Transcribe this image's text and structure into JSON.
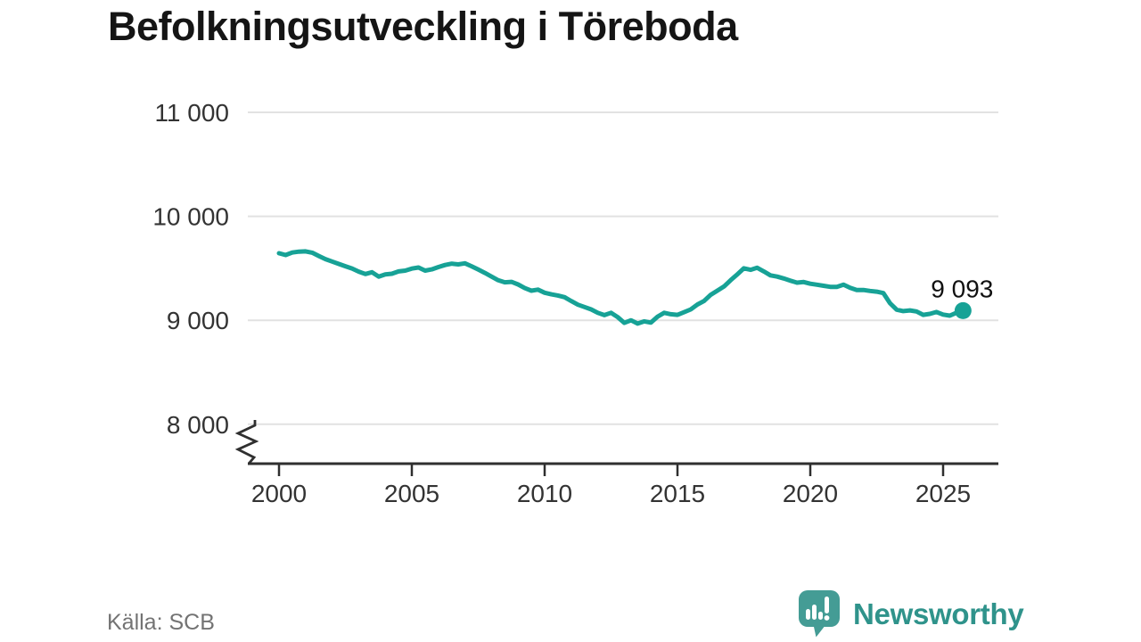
{
  "title": "Befolkningsutveckling i Töreboda",
  "source": "Källa: SCB",
  "branding": {
    "name": "Newsworthy"
  },
  "colors": {
    "line": "#17A296",
    "grid": "#E2E2E2",
    "axis": "#2F2F2F",
    "tick_text": "#333333",
    "annotation_text": "#111111",
    "muted_text": "#737373",
    "brand_icon": "#449C95",
    "brand_text": "#2F938B",
    "background": "#FFFFFF"
  },
  "chart_data": {
    "type": "line",
    "title": "Befolkningsutveckling i Töreboda",
    "xlabel": "",
    "ylabel": "",
    "grid": "horizontal",
    "legend": "none",
    "axis_break": true,
    "xlim": [
      1998.8,
      2027.2
    ],
    "ylim_shown": [
      8000,
      11000
    ],
    "x_ticks": [
      2000,
      2005,
      2010,
      2015,
      2020,
      2025
    ],
    "y_ticks": [
      {
        "value": 11000,
        "label": "11 000"
      },
      {
        "value": 10000,
        "label": "10 000"
      },
      {
        "value": 9000,
        "label": "9 000"
      },
      {
        "value": 8000,
        "label": "8 000"
      }
    ],
    "series": [
      {
        "name": "Befolkning",
        "x_start": 2000.0,
        "x_step": 0.25,
        "values": [
          9645,
          9628,
          9652,
          9660,
          9663,
          9650,
          9618,
          9588,
          9565,
          9542,
          9520,
          9498,
          9468,
          9445,
          9462,
          9420,
          9442,
          9448,
          9470,
          9478,
          9497,
          9508,
          9478,
          9490,
          9512,
          9532,
          9545,
          9538,
          9548,
          9520,
          9488,
          9455,
          9420,
          9385,
          9365,
          9370,
          9345,
          9310,
          9285,
          9295,
          9265,
          9250,
          9238,
          9222,
          9185,
          9150,
          9128,
          9105,
          9072,
          9050,
          9072,
          9030,
          8975,
          9000,
          8968,
          8990,
          8978,
          9035,
          9072,
          9058,
          9052,
          9078,
          9105,
          9152,
          9185,
          9245,
          9285,
          9325,
          9385,
          9442,
          9500,
          9485,
          9505,
          9470,
          9432,
          9420,
          9402,
          9382,
          9362,
          9368,
          9352,
          9342,
          9332,
          9322,
          9322,
          9342,
          9312,
          9292,
          9292,
          9282,
          9275,
          9262,
          9165,
          9102,
          9088,
          9095,
          9085,
          9052,
          9062,
          9080,
          9055,
          9045,
          9072,
          9093
        ]
      }
    ],
    "end_point": {
      "x": 2025.75,
      "value": 9093,
      "label": "9 093"
    }
  }
}
